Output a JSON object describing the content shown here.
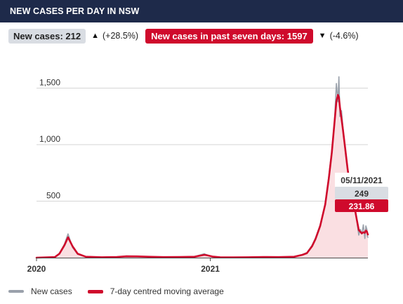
{
  "header": {
    "title": "NEW CASES PER DAY IN NSW"
  },
  "stats": {
    "new_cases_label": "New cases: 212",
    "new_cases_change": "(+28.5%)",
    "week_label": "New cases in past seven days: 1597",
    "week_change": "(-4.6%)",
    "up_arrow": "▲",
    "down_arrow": "▼"
  },
  "tooltip": {
    "date": "05/11/2021",
    "new_cases": "249",
    "average": "231.86"
  },
  "legend": {
    "new_cases": "New cases",
    "average": "7-day centred moving average"
  },
  "colors": {
    "header": "#1e2a4a",
    "red": "#cf0a2c",
    "grey": "#9aa1ab",
    "fill": "#f9dcdf"
  },
  "chart_data": {
    "type": "line",
    "title": "NEW CASES PER DAY IN NSW",
    "x_ticks": [
      "2020",
      "2021"
    ],
    "y_ticks": [
      500,
      1000,
      1500
    ],
    "y_tick_labels": [
      "500",
      "1,000",
      "1,500"
    ],
    "ylim": [
      0,
      1500
    ],
    "grid": true,
    "legend_position": "bottom",
    "series": [
      {
        "name": "New cases",
        "x": [
          "2020-01-25",
          "2020-03-01",
          "2020-03-10",
          "2020-03-20",
          "2020-03-27",
          "2020-04-05",
          "2020-04-15",
          "2020-05-01",
          "2020-06-01",
          "2020-07-01",
          "2020-07-20",
          "2020-08-10",
          "2020-09-01",
          "2020-10-01",
          "2020-11-01",
          "2020-12-01",
          "2020-12-20",
          "2020-12-25",
          "2021-01-05",
          "2021-01-20",
          "2021-02-15",
          "2021-03-15",
          "2021-04-15",
          "2021-05-15",
          "2021-06-15",
          "2021-07-01",
          "2021-07-10",
          "2021-07-20",
          "2021-07-27",
          "2021-08-05",
          "2021-08-15",
          "2021-08-22",
          "2021-08-28",
          "2021-09-02",
          "2021-09-06",
          "2021-09-09",
          "2021-09-11",
          "2021-09-13",
          "2021-09-16",
          "2021-09-19",
          "2021-09-23",
          "2021-09-28",
          "2021-10-02",
          "2021-10-07",
          "2021-10-12",
          "2021-10-16",
          "2021-10-20",
          "2021-10-23",
          "2021-10-26",
          "2021-10-29",
          "2021-11-01",
          "2021-11-03",
          "2021-11-05",
          "2021-11-06",
          "2021-11-07"
        ],
        "values": [
          0,
          5,
          40,
          120,
          210,
          90,
          30,
          8,
          4,
          6,
          14,
          12,
          8,
          5,
          6,
          10,
          35,
          25,
          10,
          4,
          3,
          4,
          6,
          5,
          10,
          28,
          45,
          110,
          175,
          290,
          480,
          720,
          950,
          1180,
          1540,
          1380,
          1600,
          1250,
          1300,
          1150,
          960,
          780,
          620,
          580,
          420,
          330,
          200,
          250,
          210,
          290,
          170,
          280,
          249,
          190,
          180
        ]
      },
      {
        "name": "7-day centred moving average",
        "x": [
          "2020-01-25",
          "2020-03-01",
          "2020-03-10",
          "2020-03-20",
          "2020-03-27",
          "2020-04-05",
          "2020-04-15",
          "2020-05-01",
          "2020-06-01",
          "2020-07-01",
          "2020-07-20",
          "2020-08-10",
          "2020-09-01",
          "2020-10-01",
          "2020-11-01",
          "2020-12-01",
          "2020-12-20",
          "2020-12-25",
          "2021-01-05",
          "2021-01-20",
          "2021-02-15",
          "2021-03-15",
          "2021-04-15",
          "2021-05-15",
          "2021-06-15",
          "2021-07-01",
          "2021-07-10",
          "2021-07-20",
          "2021-07-27",
          "2021-08-05",
          "2021-08-15",
          "2021-08-22",
          "2021-08-28",
          "2021-09-02",
          "2021-09-06",
          "2021-09-09",
          "2021-09-11",
          "2021-09-13",
          "2021-09-16",
          "2021-09-19",
          "2021-09-23",
          "2021-09-28",
          "2021-10-02",
          "2021-10-07",
          "2021-10-12",
          "2021-10-16",
          "2021-10-20",
          "2021-10-23",
          "2021-10-26",
          "2021-10-29",
          "2021-11-01",
          "2021-11-03",
          "2021-11-05",
          "2021-11-06",
          "2021-11-07"
        ],
        "values": [
          0,
          5,
          35,
          110,
          180,
          100,
          35,
          8,
          4,
          6,
          12,
          11,
          8,
          5,
          6,
          8,
          25,
          22,
          10,
          4,
          3,
          4,
          6,
          5,
          8,
          25,
          40,
          100,
          165,
          280,
          470,
          700,
          930,
          1180,
          1380,
          1440,
          1420,
          1330,
          1230,
          1130,
          980,
          790,
          660,
          560,
          440,
          340,
          245,
          230,
          215,
          225,
          220,
          240,
          231.86,
          215,
          205
        ]
      }
    ]
  }
}
